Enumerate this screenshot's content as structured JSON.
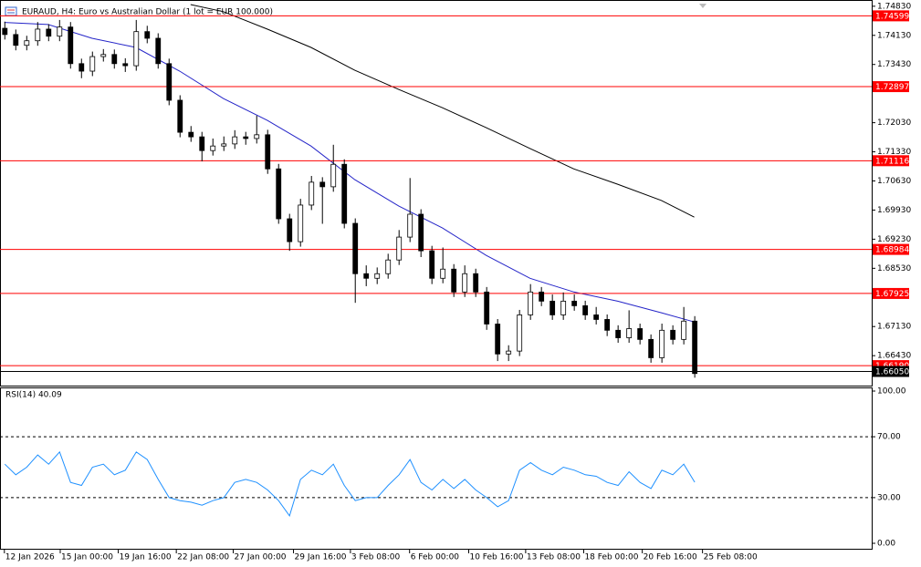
{
  "chart_data": {
    "type": "candlestick",
    "title": "EURAUD, H4:  Euro vs Australian Dollar (1 lot = EUR 100.000)",
    "up_color": "#ffffff",
    "down_color": "#000000",
    "ohlc": [
      [
        1.743,
        1.7446,
        1.7403,
        1.7415
      ],
      [
        1.7415,
        1.7427,
        1.7377,
        1.7389
      ],
      [
        1.7389,
        1.7412,
        1.7377,
        1.74
      ],
      [
        1.74,
        1.7445,
        1.7388,
        1.7428
      ],
      [
        1.7428,
        1.744,
        1.7399,
        1.7411
      ],
      [
        1.7411,
        1.745,
        1.7399,
        1.7433
      ],
      [
        1.7433,
        1.7445,
        1.7333,
        1.7345
      ],
      [
        1.7345,
        1.7357,
        1.731,
        1.7327
      ],
      [
        1.7327,
        1.7374,
        1.7315,
        1.7362
      ],
      [
        1.7362,
        1.738,
        1.735,
        1.7367
      ],
      [
        1.7367,
        1.7379,
        1.7333,
        1.7345
      ],
      [
        1.7345,
        1.7358,
        1.7325,
        1.734
      ],
      [
        1.734,
        1.745,
        1.7328,
        1.7422
      ],
      [
        1.7422,
        1.7436,
        1.7394,
        1.7406
      ],
      [
        1.7406,
        1.7418,
        1.7333,
        1.7345
      ],
      [
        1.7345,
        1.7357,
        1.7245,
        1.7257
      ],
      [
        1.7257,
        1.7269,
        1.7168,
        1.718
      ],
      [
        1.718,
        1.7195,
        1.7157,
        1.7169
      ],
      [
        1.7169,
        1.7181,
        1.711,
        1.7136
      ],
      [
        1.7136,
        1.7165,
        1.7124,
        1.7147
      ],
      [
        1.7147,
        1.717,
        1.7135,
        1.7152
      ],
      [
        1.7152,
        1.7185,
        1.714,
        1.7169
      ],
      [
        1.7169,
        1.7181,
        1.715,
        1.7165
      ],
      [
        1.7165,
        1.722,
        1.7153,
        1.7174
      ],
      [
        1.7174,
        1.7186,
        1.708,
        1.7092
      ],
      [
        1.7092,
        1.7104,
        1.696,
        1.6972
      ],
      [
        1.6972,
        1.6984,
        1.6895,
        1.6917
      ],
      [
        1.6917,
        1.702,
        1.6905,
        1.7005
      ],
      [
        1.7005,
        1.7075,
        1.6993,
        1.706
      ],
      [
        1.706,
        1.7072,
        1.696,
        1.7049
      ],
      [
        1.7049,
        1.715,
        1.7037,
        1.7103
      ],
      [
        1.7103,
        1.7115,
        1.6949,
        1.6961
      ],
      [
        1.6961,
        1.6973,
        1.677,
        1.684
      ],
      [
        1.684,
        1.686,
        1.681,
        1.6829
      ],
      [
        1.6829,
        1.6855,
        1.6815,
        1.684
      ],
      [
        1.684,
        1.6888,
        1.6828,
        1.6873
      ],
      [
        1.6873,
        1.6945,
        1.6861,
        1.6928
      ],
      [
        1.6928,
        1.707,
        1.6916,
        1.6983
      ],
      [
        1.6983,
        1.6995,
        1.688,
        1.6895
      ],
      [
        1.6895,
        1.6907,
        1.6815,
        1.6829
      ],
      [
        1.6829,
        1.6903,
        1.6817,
        1.6851
      ],
      [
        1.6851,
        1.6863,
        1.6784,
        1.6796
      ],
      [
        1.6796,
        1.686,
        1.6784,
        1.684
      ],
      [
        1.684,
        1.6852,
        1.6784,
        1.6796
      ],
      [
        1.6796,
        1.6808,
        1.6705,
        1.6719
      ],
      [
        1.6719,
        1.6731,
        1.663,
        1.6647
      ],
      [
        1.6647,
        1.6668,
        1.663,
        1.6654
      ],
      [
        1.6654,
        1.6753,
        1.6642,
        1.6741
      ],
      [
        1.6741,
        1.6815,
        1.6729,
        1.6796
      ],
      [
        1.6796,
        1.6808,
        1.6762,
        1.6774
      ],
      [
        1.6774,
        1.679,
        1.6729,
        1.6741
      ],
      [
        1.6741,
        1.6795,
        1.6729,
        1.6774
      ],
      [
        1.6774,
        1.679,
        1.6751,
        1.6763
      ],
      [
        1.6763,
        1.6775,
        1.6729,
        1.6741
      ],
      [
        1.6741,
        1.676,
        1.6718,
        1.673
      ],
      [
        1.673,
        1.6742,
        1.669,
        1.6704
      ],
      [
        1.6704,
        1.6716,
        1.6674,
        1.6686
      ],
      [
        1.6686,
        1.6752,
        1.6674,
        1.6708
      ],
      [
        1.6708,
        1.672,
        1.667,
        1.6682
      ],
      [
        1.6682,
        1.6694,
        1.6626,
        1.6638
      ],
      [
        1.6638,
        1.672,
        1.6626,
        1.6704
      ],
      [
        1.6704,
        1.6716,
        1.667,
        1.6682
      ],
      [
        1.6682,
        1.676,
        1.667,
        1.6726
      ],
      [
        1.6726,
        1.6738,
        1.659,
        1.66
      ]
    ],
    "xlim": [
      -0.4,
      79.2
    ],
    "xticks": [
      {
        "value": 0,
        "label": "12 Jan 2026"
      },
      {
        "value": 5.1,
        "label": "15 Jan 00:00"
      },
      {
        "value": 10.4,
        "label": "19 Jan 16:00"
      },
      {
        "value": 15.7,
        "label": "22 Jan 08:00"
      },
      {
        "value": 20.9,
        "label": "27 Jan 00:00"
      },
      {
        "value": 26.4,
        "label": "29 Jan 16:00"
      },
      {
        "value": 31.6,
        "label": "3 Feb 08:00"
      },
      {
        "value": 37,
        "label": "6 Feb 00:00"
      },
      {
        "value": 42.4,
        "label": "10 Feb 16:00"
      },
      {
        "value": 47.6,
        "label": "13 Feb 08:00"
      },
      {
        "value": 52.9,
        "label": "18 Feb 00:00"
      },
      {
        "value": 58.25,
        "label": "20 Feb 16:00"
      },
      {
        "value": 63.75,
        "label": "25 Feb 08:00"
      }
    ],
    "ylim": [
      1.6571,
      1.7498
    ],
    "yticks": [
      {
        "value": 1.7483,
        "label": "1.74830"
      },
      {
        "value": 1.7413,
        "label": "1.74130"
      },
      {
        "value": 1.7343,
        "label": "1.73430"
      },
      {
        "value": 1.7203,
        "label": "1.72030"
      },
      {
        "value": 1.7133,
        "label": "1.71330"
      },
      {
        "value": 1.7063,
        "label": "1.70630"
      },
      {
        "value": 1.6993,
        "label": "1.69930"
      },
      {
        "value": 1.6923,
        "label": "1.69230"
      },
      {
        "value": 1.6853,
        "label": "1.68530"
      },
      {
        "value": 1.6713,
        "label": "1.67130"
      },
      {
        "value": 1.6643,
        "label": "1.66430"
      }
    ],
    "level_color": "#ff0000",
    "levels": [
      1.74599,
      1.72897,
      1.71116,
      1.68984,
      1.67925,
      {
        "value": 1.6619,
        "label": "1.66190"
      }
    ],
    "current_price": {
      "value": 1.6605,
      "label": "1.66050"
    },
    "moving_averages": [
      {
        "color": "#2424c8",
        "x": [
          0,
          4,
          8,
          12,
          16,
          20,
          24,
          28,
          32,
          36,
          40,
          44,
          48,
          52,
          56,
          60,
          63
        ],
        "values": [
          1.7444,
          1.7439,
          1.7406,
          1.7384,
          1.7327,
          1.7261,
          1.7209,
          1.7147,
          1.7066,
          1.7003,
          1.695,
          1.6884,
          1.6829,
          1.6796,
          1.6774,
          1.6746,
          1.6724
        ]
      },
      {
        "color": "#000000",
        "x": [
          17,
          20,
          24,
          28,
          32,
          36,
          40,
          44,
          48,
          52,
          56,
          60,
          63
        ],
        "values": [
          1.7487,
          1.747,
          1.7428,
          1.7384,
          1.7329,
          1.7283,
          1.7239,
          1.7191,
          1.7141,
          1.7092,
          1.7055,
          1.7016,
          1.6976
        ]
      }
    ],
    "rsi": {
      "title": "RSI(14) 40.09",
      "color": "#1e90ff",
      "ylim": [
        -4.2,
        102.4
      ],
      "yticks": [
        {
          "value": 100,
          "label": "100.00"
        },
        {
          "value": 70,
          "label": "70.00"
        },
        {
          "value": 30,
          "label": "30.00"
        },
        {
          "value": 0,
          "label": "0.00"
        }
      ],
      "levels": [
        70,
        30
      ],
      "values": [
        52,
        45,
        50,
        58,
        52,
        60,
        40,
        38,
        50,
        52,
        45,
        48,
        60,
        55,
        42,
        30,
        28,
        27,
        25,
        28,
        30,
        40,
        42,
        40,
        35,
        28,
        18,
        42,
        48,
        45,
        52,
        38,
        28,
        30,
        30,
        38,
        45,
        55,
        40,
        35,
        42,
        36,
        42,
        35,
        30,
        24,
        28,
        48,
        53,
        48,
        45,
        50,
        48,
        45,
        44,
        40,
        38,
        47,
        40,
        36,
        48,
        45,
        52,
        40.09
      ]
    }
  }
}
